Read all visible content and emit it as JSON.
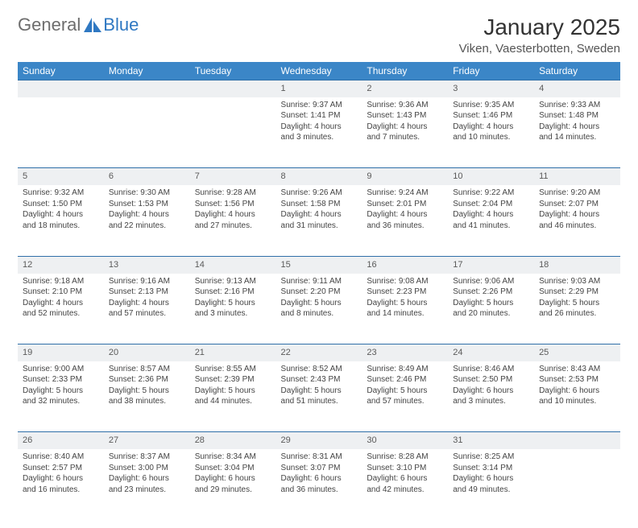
{
  "brand": {
    "part1": "General",
    "part2": "Blue",
    "logo_color": "#2f78c2"
  },
  "title": "January 2025",
  "location": "Viken, Vaesterbotten, Sweden",
  "header_bg": "#3b86c7",
  "header_fg": "#ffffff",
  "daynum_bg": "#eef0f2",
  "row_border": "#2f6fa8",
  "days": [
    "Sunday",
    "Monday",
    "Tuesday",
    "Wednesday",
    "Thursday",
    "Friday",
    "Saturday"
  ],
  "weeks": [
    [
      null,
      null,
      null,
      {
        "n": "1",
        "sr": "9:37 AM",
        "ss": "1:41 PM",
        "dl": "4 hours and 3 minutes."
      },
      {
        "n": "2",
        "sr": "9:36 AM",
        "ss": "1:43 PM",
        "dl": "4 hours and 7 minutes."
      },
      {
        "n": "3",
        "sr": "9:35 AM",
        "ss": "1:46 PM",
        "dl": "4 hours and 10 minutes."
      },
      {
        "n": "4",
        "sr": "9:33 AM",
        "ss": "1:48 PM",
        "dl": "4 hours and 14 minutes."
      }
    ],
    [
      {
        "n": "5",
        "sr": "9:32 AM",
        "ss": "1:50 PM",
        "dl": "4 hours and 18 minutes."
      },
      {
        "n": "6",
        "sr": "9:30 AM",
        "ss": "1:53 PM",
        "dl": "4 hours and 22 minutes."
      },
      {
        "n": "7",
        "sr": "9:28 AM",
        "ss": "1:56 PM",
        "dl": "4 hours and 27 minutes."
      },
      {
        "n": "8",
        "sr": "9:26 AM",
        "ss": "1:58 PM",
        "dl": "4 hours and 31 minutes."
      },
      {
        "n": "9",
        "sr": "9:24 AM",
        "ss": "2:01 PM",
        "dl": "4 hours and 36 minutes."
      },
      {
        "n": "10",
        "sr": "9:22 AM",
        "ss": "2:04 PM",
        "dl": "4 hours and 41 minutes."
      },
      {
        "n": "11",
        "sr": "9:20 AM",
        "ss": "2:07 PM",
        "dl": "4 hours and 46 minutes."
      }
    ],
    [
      {
        "n": "12",
        "sr": "9:18 AM",
        "ss": "2:10 PM",
        "dl": "4 hours and 52 minutes."
      },
      {
        "n": "13",
        "sr": "9:16 AM",
        "ss": "2:13 PM",
        "dl": "4 hours and 57 minutes."
      },
      {
        "n": "14",
        "sr": "9:13 AM",
        "ss": "2:16 PM",
        "dl": "5 hours and 3 minutes."
      },
      {
        "n": "15",
        "sr": "9:11 AM",
        "ss": "2:20 PM",
        "dl": "5 hours and 8 minutes."
      },
      {
        "n": "16",
        "sr": "9:08 AM",
        "ss": "2:23 PM",
        "dl": "5 hours and 14 minutes."
      },
      {
        "n": "17",
        "sr": "9:06 AM",
        "ss": "2:26 PM",
        "dl": "5 hours and 20 minutes."
      },
      {
        "n": "18",
        "sr": "9:03 AM",
        "ss": "2:29 PM",
        "dl": "5 hours and 26 minutes."
      }
    ],
    [
      {
        "n": "19",
        "sr": "9:00 AM",
        "ss": "2:33 PM",
        "dl": "5 hours and 32 minutes."
      },
      {
        "n": "20",
        "sr": "8:57 AM",
        "ss": "2:36 PM",
        "dl": "5 hours and 38 minutes."
      },
      {
        "n": "21",
        "sr": "8:55 AM",
        "ss": "2:39 PM",
        "dl": "5 hours and 44 minutes."
      },
      {
        "n": "22",
        "sr": "8:52 AM",
        "ss": "2:43 PM",
        "dl": "5 hours and 51 minutes."
      },
      {
        "n": "23",
        "sr": "8:49 AM",
        "ss": "2:46 PM",
        "dl": "5 hours and 57 minutes."
      },
      {
        "n": "24",
        "sr": "8:46 AM",
        "ss": "2:50 PM",
        "dl": "6 hours and 3 minutes."
      },
      {
        "n": "25",
        "sr": "8:43 AM",
        "ss": "2:53 PM",
        "dl": "6 hours and 10 minutes."
      }
    ],
    [
      {
        "n": "26",
        "sr": "8:40 AM",
        "ss": "2:57 PM",
        "dl": "6 hours and 16 minutes."
      },
      {
        "n": "27",
        "sr": "8:37 AM",
        "ss": "3:00 PM",
        "dl": "6 hours and 23 minutes."
      },
      {
        "n": "28",
        "sr": "8:34 AM",
        "ss": "3:04 PM",
        "dl": "6 hours and 29 minutes."
      },
      {
        "n": "29",
        "sr": "8:31 AM",
        "ss": "3:07 PM",
        "dl": "6 hours and 36 minutes."
      },
      {
        "n": "30",
        "sr": "8:28 AM",
        "ss": "3:10 PM",
        "dl": "6 hours and 42 minutes."
      },
      {
        "n": "31",
        "sr": "8:25 AM",
        "ss": "3:14 PM",
        "dl": "6 hours and 49 minutes."
      },
      null
    ]
  ],
  "labels": {
    "sunrise": "Sunrise:",
    "sunset": "Sunset:",
    "daylight": "Daylight:"
  }
}
